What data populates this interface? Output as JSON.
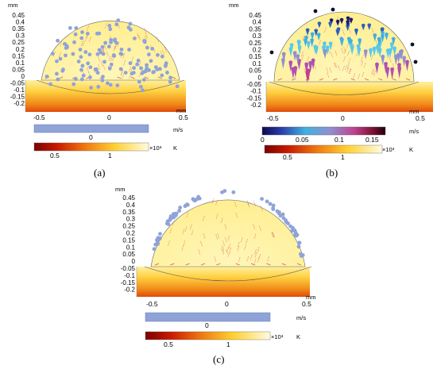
{
  "panel_a": {
    "caption": "(a)",
    "y_unit": "mm",
    "x_unit": "mm",
    "y_ticks": [
      "0.45",
      "0.4",
      "0.35",
      "0.3",
      "0.25",
      "0.2",
      "0.15",
      "0.1",
      "0.05",
      "0",
      "-0.05",
      "-0.1",
      "-0.15",
      "-0.2"
    ],
    "x_ticks": [
      "-0.5",
      "0",
      "0.5"
    ],
    "velocity_bar": {
      "unit": "m/s",
      "ticks": [
        "0"
      ]
    },
    "temp_bar": {
      "unit": "K",
      "exponent": "×10³",
      "ticks": [
        "0.5",
        "1"
      ]
    }
  },
  "panel_b": {
    "caption": "(b)",
    "y_unit": "mm",
    "x_unit": "mm",
    "y_ticks": [
      "0.45",
      "0.4",
      "0.35",
      "0.3",
      "0.25",
      "0.2",
      "0.15",
      "0.1",
      "0.05",
      "0",
      "-0.05",
      "-0.1",
      "-0.15",
      "-0.2"
    ],
    "x_ticks": [
      "-0.5",
      "0",
      "0.5"
    ],
    "velocity_bar": {
      "unit": "m/s",
      "ticks": [
        "0",
        "0.05",
        "0.1",
        "0.15"
      ]
    },
    "temp_bar": {
      "unit": "K",
      "exponent": "×10³",
      "ticks": [
        "0.5",
        "1"
      ]
    }
  },
  "panel_c": {
    "caption": "(c)",
    "y_unit": "mm",
    "x_unit": "mm",
    "y_ticks": [
      "0.45",
      "0.4",
      "0.35",
      "0.3",
      "0.25",
      "0.2",
      "0.15",
      "0.1",
      "0.05",
      "0",
      "-0.05",
      "-0.1",
      "-0.15",
      "-0.2"
    ],
    "x_ticks": [
      "-0.5",
      "0",
      "0.5"
    ],
    "velocity_bar": {
      "unit": "m/s",
      "ticks": [
        "0"
      ]
    },
    "temp_bar": {
      "unit": "K",
      "exponent": "×10³",
      "ticks": [
        "0.5",
        "1"
      ]
    }
  },
  "colors": {
    "substrate_top": "#ffd84a",
    "substrate_bottom": "#e84a0a",
    "droplet_fill": "#fff2a0",
    "particle_blue": "#8fa3d8",
    "velocity_bar_blue": "#8fa3d8",
    "flow_arrow": "#c8323a"
  }
}
